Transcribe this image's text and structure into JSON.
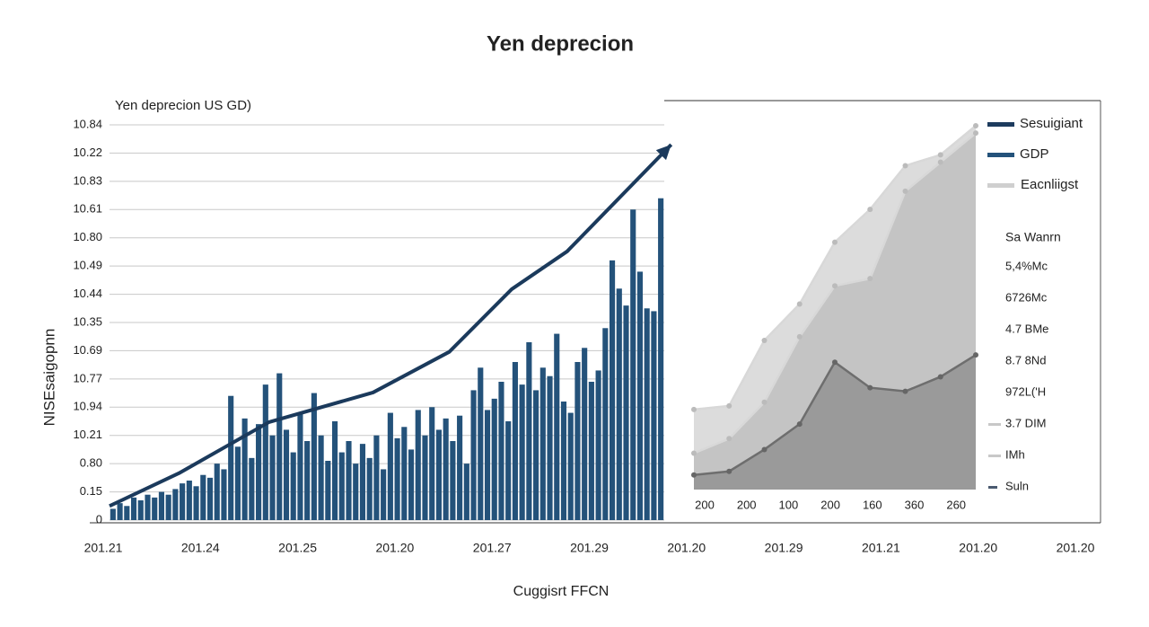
{
  "chart_data": [
    {
      "type": "bar",
      "title": "Yen deprecion",
      "subtitle": "Yen deprecion US GD)",
      "y_label": "NISEsaigopnn",
      "x_label": "Cuggisrt FFCN",
      "color": "#24527a",
      "values": [
        0.4,
        0.6,
        0.5,
        0.8,
        0.7,
        0.9,
        0.8,
        1.0,
        0.9,
        1.1,
        1.3,
        1.4,
        1.2,
        1.6,
        1.5,
        2.0,
        1.8,
        4.4,
        2.6,
        3.6,
        2.2,
        3.4,
        4.8,
        3.0,
        5.2,
        3.2,
        2.4,
        3.8,
        2.8,
        4.5,
        3.0,
        2.1,
        3.5,
        2.4,
        2.8,
        2.0,
        2.7,
        2.2,
        3.0,
        1.8,
        3.8,
        2.9,
        3.3,
        2.5,
        3.9,
        3.0,
        4.0,
        3.2,
        3.6,
        2.8,
        3.7,
        2.0,
        4.6,
        5.4,
        3.9,
        4.3,
        4.9,
        3.5,
        5.6,
        4.8,
        6.3,
        4.6,
        5.4,
        5.1,
        6.6,
        4.2,
        3.8,
        5.6,
        6.1,
        4.9,
        5.3,
        6.8,
        9.2,
        8.2,
        7.6,
        11.0,
        8.8,
        7.5,
        7.4,
        11.4
      ],
      "line": {
        "color": "#1b3a5c",
        "x": [
          0,
          10,
          23,
          38,
          49,
          58,
          66,
          81
        ],
        "values": [
          0.5,
          1.66,
          3.47,
          4.52,
          5.96,
          8.18,
          9.52,
          13.3
        ]
      },
      "xlim": [
        0,
        80
      ],
      "ylim": [
        0,
        14
      ],
      "yticks": [
        {
          "value": 0,
          "label": "0"
        },
        {
          "value": 1,
          "label": "0.15"
        },
        {
          "value": 2,
          "label": "0.80"
        },
        {
          "value": 3,
          "label": "10.21"
        },
        {
          "value": 4,
          "label": "10.94"
        },
        {
          "value": 5,
          "label": "10.77"
        },
        {
          "value": 6,
          "label": "10.69"
        },
        {
          "value": 7,
          "label": "10.35"
        },
        {
          "value": 8,
          "label": "10.44"
        },
        {
          "value": 9,
          "label": "10.49"
        },
        {
          "value": 10,
          "label": "10.80"
        },
        {
          "value": 11,
          "label": "10.61"
        },
        {
          "value": 12,
          "label": "10.83"
        },
        {
          "value": 13,
          "label": "10.22"
        },
        {
          "value": 14,
          "label": "10.84"
        }
      ],
      "grid": true,
      "x_tick_labels": [
        "201.21",
        "201.24",
        "201.25",
        "201.20",
        "201.27",
        "201.29",
        "201.20",
        "201.29",
        "201.21",
        "201.20",
        "201.20"
      ]
    },
    {
      "type": "area",
      "ylim": [
        0,
        100
      ],
      "x_tick_labels": [
        "200",
        "200",
        "100",
        "200",
        "160",
        "360",
        "260"
      ],
      "series": [
        {
          "name": "Eacnliigst",
          "color": "#dcdcdc",
          "values": [
            22,
            23,
            41,
            51,
            68,
            77,
            89,
            92,
            100
          ]
        },
        {
          "name": "GDP",
          "color": "#c4c4c4",
          "values": [
            10,
            14,
            24,
            42,
            56,
            58,
            82,
            90,
            98
          ]
        },
        {
          "name": "Sesuigiant",
          "color": "#9a9a9a",
          "values": [
            4,
            5,
            11,
            18,
            35,
            28,
            27,
            31,
            37
          ]
        }
      ],
      "legend_colors": [
        "#1d3b5e",
        "#24527a",
        "#cfcfcf"
      ],
      "side_title": "Sa Wanrn",
      "side_labels": [
        "5,4%Mc",
        "6726Mc",
        "4.7 BMe",
        "8.7 8Nd",
        "972L('H",
        "3.7 DIM",
        "IMh",
        "Suln"
      ]
    }
  ]
}
